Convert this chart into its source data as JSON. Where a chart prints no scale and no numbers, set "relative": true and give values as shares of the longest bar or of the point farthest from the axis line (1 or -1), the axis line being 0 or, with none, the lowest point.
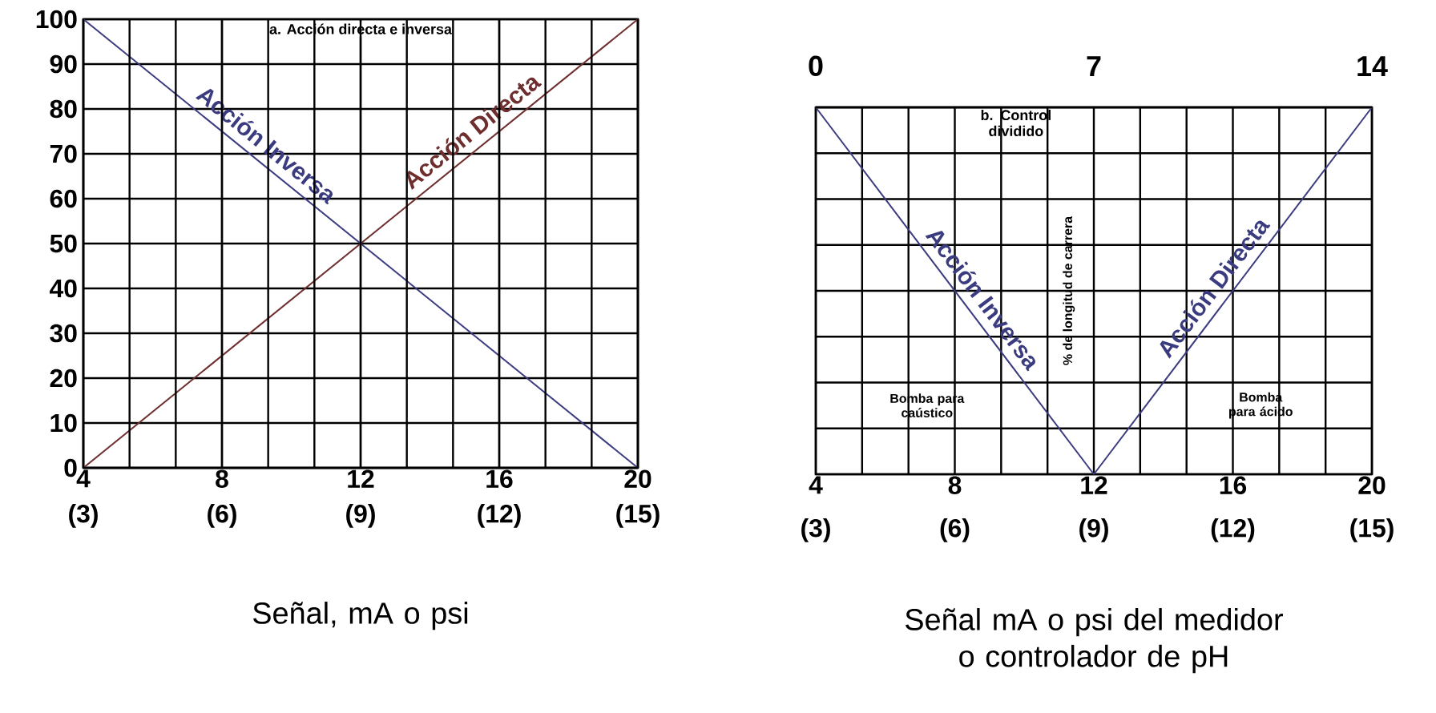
{
  "chart_data": [
    {
      "type": "line",
      "title": "a. Acción directa e inversa",
      "xlabel": "Señal, mA o psi",
      "x": [
        4,
        20
      ],
      "xlim": [
        4,
        20
      ],
      "ylim": [
        0,
        100
      ],
      "xticks": [
        4,
        8,
        12,
        16,
        20
      ],
      "x2lim": [
        3,
        15
      ],
      "x2ticks": [
        {
          "value": 3,
          "label": "(3)"
        },
        {
          "value": 4,
          "label": null
        },
        {
          "value": 5,
          "label": null
        },
        {
          "value": 6,
          "label": "(6)"
        },
        {
          "value": 7,
          "label": null
        },
        {
          "value": 8,
          "label": null
        },
        {
          "value": 9,
          "label": "(9)"
        },
        {
          "value": 10,
          "label": null
        },
        {
          "value": 11,
          "label": null
        },
        {
          "value": 12,
          "label": "(12)"
        },
        {
          "value": 13,
          "label": null
        },
        {
          "value": 14,
          "label": null
        },
        {
          "value": 15,
          "label": "(15)"
        }
      ],
      "yticks": [
        0,
        10,
        20,
        30,
        40,
        50,
        60,
        70,
        80,
        90,
        100
      ],
      "grid": true,
      "series": [
        {
          "name": "Acción Inversa",
          "color": "#3b3b80",
          "values": [
            100,
            0
          ]
        },
        {
          "name": "Acción Directa",
          "color": "#6e2e2e",
          "values": [
            0,
            100
          ]
        }
      ]
    },
    {
      "type": "line",
      "title": "b. Control dividido",
      "xlabel": "Señal mA o psi del medidor o controlador de pH",
      "ylabel": "% de longitud de carrera",
      "relative": true,
      "xlim": [
        4,
        20
      ],
      "xticks": [
        4,
        {
          "value": 5.333,
          "label": null
        },
        {
          "value": 6.667,
          "label": null
        },
        8,
        {
          "value": 9.333,
          "label": null
        },
        {
          "value": 10.667,
          "label": null
        },
        12,
        {
          "value": 13.333,
          "label": null
        },
        {
          "value": 14.667,
          "label": null
        },
        16,
        {
          "value": 17.333,
          "label": null
        },
        {
          "value": 18.667,
          "label": null
        },
        20
      ],
      "x2lim": [
        0,
        14
      ],
      "x2ticks": [
        0,
        7,
        14
      ],
      "tick_labels": "x",
      "grid": true,
      "annotations": [
        "Bomba para caústico",
        "Bomba para ácido",
        "(3)",
        "(6)",
        "(9)",
        "(12)",
        "(15)"
      ],
      "series": [
        {
          "name": "Acción Inversa",
          "color": "#3b3b80",
          "x": [
            4,
            12
          ],
          "values": [
            1,
            0
          ]
        },
        {
          "name": "Acción Directa",
          "color": "#3b3b80",
          "x": [
            12,
            20
          ],
          "values": [
            0,
            1
          ]
        }
      ]
    }
  ]
}
